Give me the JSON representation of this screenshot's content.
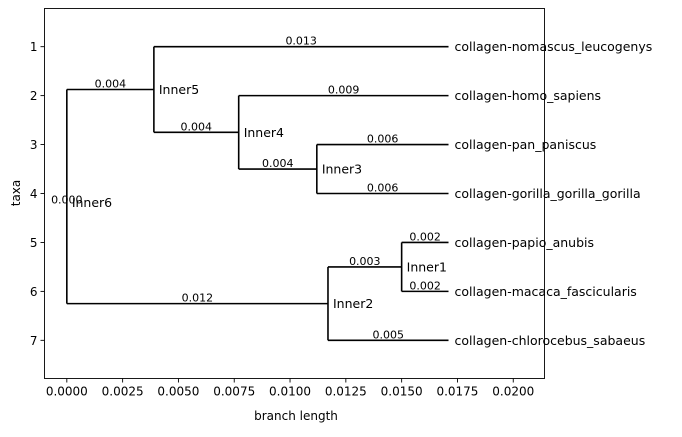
{
  "chart_data": {
    "type": "phylogenetic-tree",
    "xlabel": "branch length",
    "ylabel": "taxa",
    "xlim": [
      -0.001,
      0.0214
    ],
    "ylim": [
      7.78,
      0.22
    ],
    "x_ticks": [
      "0.0000",
      "0.0025",
      "0.0050",
      "0.0075",
      "0.0100",
      "0.0125",
      "0.0150",
      "0.0175",
      "0.0200"
    ],
    "x_tick_values": [
      0.0,
      0.0025,
      0.005,
      0.0075,
      0.01,
      0.0125,
      0.015,
      0.0175,
      0.02
    ],
    "y_ticks": [
      "1",
      "2",
      "3",
      "4",
      "5",
      "6",
      "7"
    ],
    "y_tick_values": [
      1,
      2,
      3,
      4,
      5,
      6,
      7
    ],
    "grid": false,
    "nodes": [
      {
        "name": "Inner6",
        "x": 0.0,
        "y": 4.1875,
        "branch_label": "0.000"
      },
      {
        "name": "Inner5",
        "x": 0.0039,
        "y": 1.875,
        "branch_label": "0.004"
      },
      {
        "name": "Inner4",
        "x": 0.0077,
        "y": 2.75,
        "branch_label": "0.004"
      },
      {
        "name": "Inner3",
        "x": 0.0112,
        "y": 3.5,
        "branch_label": "0.004"
      },
      {
        "name": "Inner2",
        "x": 0.0117,
        "y": 6.25,
        "branch_label": "0.012"
      },
      {
        "name": "Inner1",
        "x": 0.015,
        "y": 5.5,
        "branch_label": "0.003"
      }
    ],
    "leaves": [
      {
        "name": "collagen-nomascus_leucogenys",
        "x": 0.0171,
        "y": 1,
        "branch_label": "0.013"
      },
      {
        "name": "collagen-homo_sapiens",
        "x": 0.0171,
        "y": 2,
        "branch_label": "0.009"
      },
      {
        "name": "collagen-pan_paniscus",
        "x": 0.0171,
        "y": 3,
        "branch_label": "0.006"
      },
      {
        "name": "collagen-gorilla_gorilla_gorilla",
        "x": 0.0171,
        "y": 4,
        "branch_label": "0.006"
      },
      {
        "name": "collagen-papio_anubis",
        "x": 0.0171,
        "y": 5,
        "branch_label": "0.002"
      },
      {
        "name": "collagen-macaca_fascicularis",
        "x": 0.0171,
        "y": 6,
        "branch_label": "0.002"
      },
      {
        "name": "collagen-chlorocebus_sabaeus",
        "x": 0.0171,
        "y": 7,
        "branch_label": "0.005"
      }
    ],
    "edges": [
      {
        "parent": "Inner6",
        "child": "Inner5"
      },
      {
        "parent": "Inner6",
        "child": "Inner2"
      },
      {
        "parent": "Inner5",
        "child": "collagen-nomascus_leucogenys"
      },
      {
        "parent": "Inner5",
        "child": "Inner4"
      },
      {
        "parent": "Inner4",
        "child": "collagen-homo_sapiens"
      },
      {
        "parent": "Inner4",
        "child": "Inner3"
      },
      {
        "parent": "Inner3",
        "child": "collagen-pan_paniscus"
      },
      {
        "parent": "Inner3",
        "child": "collagen-gorilla_gorilla_gorilla"
      },
      {
        "parent": "Inner2",
        "child": "Inner1"
      },
      {
        "parent": "Inner2",
        "child": "collagen-chlorocebus_sabaeus"
      },
      {
        "parent": "Inner1",
        "child": "collagen-papio_anubis"
      },
      {
        "parent": "Inner1",
        "child": "collagen-macaca_fascicularis"
      }
    ]
  }
}
